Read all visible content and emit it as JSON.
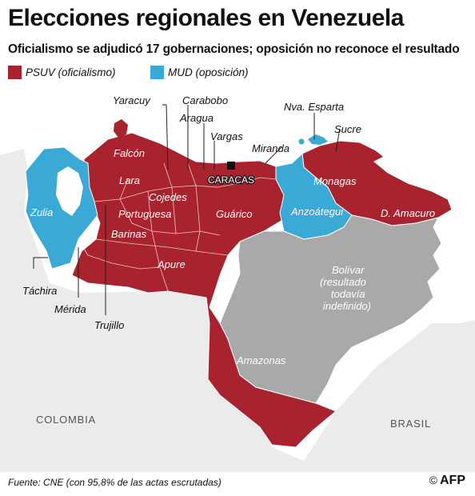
{
  "header": {
    "title": "Elecciones regionales en Venezuela",
    "subtitle": "Oficialismo se adjudicó 17 gobernaciones; oposición no reconoce el resultado"
  },
  "legend": [
    {
      "label": "PSUV (oficialismo)",
      "color": "#a8232e"
    },
    {
      "label": "MUD (oposición)",
      "color": "#3aa9d6"
    }
  ],
  "colors": {
    "psuv": "#a8232e",
    "mud": "#3aa9d6",
    "undetermined": "#a9a9a9",
    "neighbor": "#ebebeb",
    "sea": "#ffffff"
  },
  "states": {
    "zulia": "Zulia",
    "falcon": "Falcón",
    "lara": "Lara",
    "yaracuy": "Yaracuy",
    "carabobo": "Carabobo",
    "aragua": "Aragua",
    "vargas": "Vargas",
    "miranda": "Miranda",
    "caracas": "CARACAS",
    "nva_esparta": "Nva. Esparta",
    "sucre": "Sucre",
    "monagas": "Monagas",
    "anzoategui": "Anzoátegui",
    "d_amacuro": "D. Amacuro",
    "cojedes": "Cojedes",
    "portuguesa": "Portuguesa",
    "guarico": "Guárico",
    "barinas": "Barinas",
    "apure": "Apure",
    "tachira": "Táchira",
    "merida": "Mérida",
    "trujillo": "Trujillo",
    "amazonas": "Amazonas",
    "bolivar_name": "Bolívar",
    "bolivar_note_1": "(resultado",
    "bolivar_note_2": "todavía",
    "bolivar_note_3": "indefinido)"
  },
  "countries": {
    "colombia": "COLOMBIA",
    "brasil": "BRASIL"
  },
  "footer": {
    "source": "Fuente: CNE (con 95,8% de las actas escrutadas)",
    "copyright": "©",
    "agency": "AFP"
  }
}
